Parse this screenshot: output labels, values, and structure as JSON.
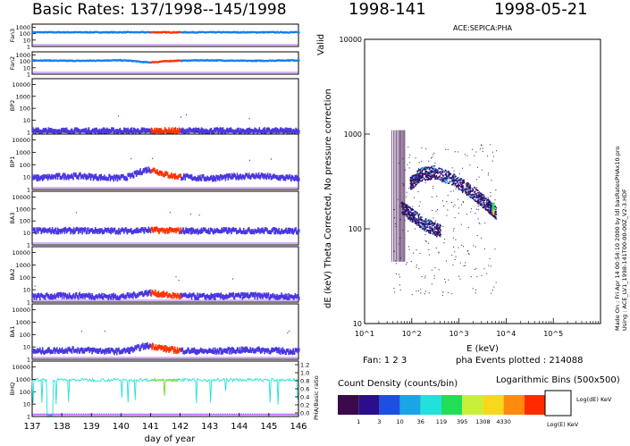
{
  "header": {
    "left_title": "Basic Rates: 137/1998--145/1998",
    "doy_title": "1998-141",
    "date_title": "1998-05-21",
    "valid_label": "Valid"
  },
  "colors": {
    "rate_blue": "#4a37e0",
    "fan_blue": "#1a7fe6",
    "highlight_red": "#ff3300",
    "bhq_cyan": "#22e0dc",
    "bhq_green": "#66dd22",
    "guide_purple": "#9b30ff"
  },
  "chart_data": [
    {
      "type": "line",
      "title": "Basic Rates: 137/1998--145/1998",
      "xlabel": "day of year",
      "x_ticks": [
        "137",
        "138",
        "139",
        "140",
        "141",
        "142",
        "143",
        "144",
        "145",
        "146"
      ],
      "xlim": [
        137,
        146
      ],
      "highlight_span": [
        141,
        142
      ],
      "panels": [
        {
          "name": "Fan3",
          "yscale": "log",
          "ylim": [
            1,
            3000
          ],
          "y_ticks": [
            "1000",
            "100",
            "10",
            "1"
          ],
          "level": 160,
          "bump": 0
        },
        {
          "name": "Fan2",
          "yscale": "log",
          "ylim": [
            1,
            3000
          ],
          "y_ticks": [
            "1000",
            "100",
            "10",
            "1"
          ],
          "level": 130,
          "bump": -0.25
        },
        {
          "name": "BP2",
          "yscale": "log",
          "ylim": [
            1,
            30000
          ],
          "y_ticks": [
            "10000",
            "1000",
            "100",
            "10",
            "1"
          ],
          "level": 1.3,
          "bump": 0
        },
        {
          "name": "BP1",
          "yscale": "log",
          "ylim": [
            1,
            30000
          ],
          "y_ticks": [
            "10000",
            "1000",
            "100",
            "10",
            "1"
          ],
          "level": 10,
          "bump": 0.55
        },
        {
          "name": "BA3",
          "yscale": "log",
          "ylim": [
            1,
            30000
          ],
          "y_ticks": [
            "10000",
            "1000",
            "100",
            "10",
            "1"
          ],
          "level": 15,
          "bump": 0.05
        },
        {
          "name": "BA2",
          "yscale": "log",
          "ylim": [
            1,
            30000
          ],
          "y_ticks": [
            "10000",
            "1000",
            "100",
            "10",
            "1"
          ],
          "level": 3,
          "bump": 0.25
        },
        {
          "name": "BA1",
          "yscale": "log",
          "ylim": [
            1,
            30000
          ],
          "y_ticks": [
            "10000",
            "1000",
            "100",
            "10",
            "1"
          ],
          "level": 5,
          "bump": 0.35
        },
        {
          "name": "BHQ",
          "yscale": "log",
          "ylim": [
            1,
            30000
          ],
          "y_ticks": [
            "10000",
            "1000",
            "100",
            "10",
            "1"
          ],
          "level": 900,
          "bump": 0
        }
      ],
      "ratio_axis": {
        "label": "PHA/Basic ratio",
        "ticks": [
          "1.2",
          "1.0",
          "0.8",
          "0.6",
          "0.4",
          "0.2",
          "0.0"
        ]
      }
    },
    {
      "type": "heatmap",
      "title": "ACE:SEPICA:PHA",
      "xlabel": "E (keV)",
      "ylabel": "dE (keV) Theta Corrected, No pressure correction",
      "xscale": "log",
      "yscale": "log",
      "xlim": [
        10,
        1000000
      ],
      "ylim": [
        10,
        10000
      ],
      "x_ticks": [
        "10^1",
        "10^2",
        "10^3",
        "10^4",
        "10^5"
      ],
      "y_ticks": [
        "10000",
        "1000",
        "100",
        "10"
      ],
      "tracks": [
        {
          "name": "high",
          "E": [
            90,
            150,
            300,
            800,
            2000,
            4000,
            6000
          ],
          "dE": [
            300,
            380,
            400,
            330,
            240,
            180,
            150
          ]
        },
        {
          "name": "low",
          "E": [
            60,
            100,
            200,
            400
          ],
          "dE": [
            170,
            140,
            110,
            95
          ]
        }
      ],
      "footer": {
        "fan_text": "Fan: 1 2 3",
        "events_text": "pha Events plotted : 214088"
      },
      "side_note": "Made On : Fri Apr 14 00:54:10 2000  by ldl basRatesPHAx10.pro\nUsing : ACE_LV1_1998-141T00-00-00Z_V2-3.HDF"
    }
  ],
  "legend": {
    "title": "Count Density (counts/bin)",
    "bins_title": "Logarithmic Bins (500x500)",
    "colorbar_colors": [
      "#3b0a4a",
      "#2a0e8c",
      "#1d4fe0",
      "#1aa6e6",
      "#22e0dc",
      "#22dd55",
      "#c8f03a",
      "#f7d81c",
      "#ff8a10",
      "#ff2a00"
    ],
    "colorbar_ticks": [
      "1",
      "3",
      "10",
      "36",
      "119",
      "395",
      "1308",
      "4330"
    ],
    "box_y_label": "Log(dE) KeV",
    "box_x_label": "Log(E) KeV"
  }
}
